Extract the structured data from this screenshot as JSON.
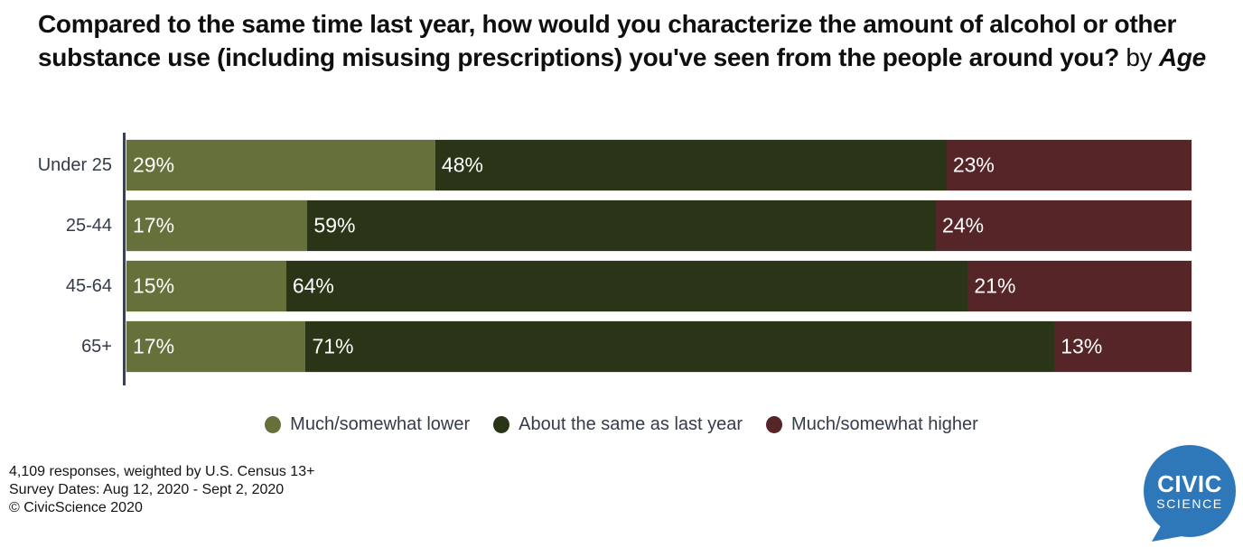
{
  "title": {
    "question": "Compared to the same time last year, how would you characterize the amount of alcohol or other substance use (including misusing prescriptions) you've seen from the people around you?",
    "connector": " by ",
    "breakout": "Age"
  },
  "chart_data": {
    "type": "bar",
    "stacked": true,
    "orientation": "horizontal",
    "categories": [
      "Under 25",
      "25-44",
      "45-64",
      "65+"
    ],
    "series": [
      {
        "name": "Much/somewhat lower",
        "color": "#66703a",
        "values": [
          29,
          17,
          15,
          17
        ]
      },
      {
        "name": "About the same as last year",
        "color": "#2a3517",
        "values": [
          48,
          59,
          64,
          71
        ]
      },
      {
        "name": "Much/somewhat higher",
        "color": "#552528",
        "values": [
          23,
          24,
          21,
          13
        ]
      }
    ],
    "value_suffix": "%",
    "xlim": [
      0,
      100
    ],
    "grid": false,
    "legend_position": "bottom",
    "axis_color": "#3a4150"
  },
  "footer": {
    "lines": [
      "4,109 responses, weighted by U.S. Census 13+",
      "Survey Dates: Aug 12, 2020 - Sept 2, 2020",
      "© CivicScience 2020"
    ]
  },
  "logo": {
    "line1": "CIVIC",
    "line2": "SCIENCE",
    "color": "#2e78ba"
  }
}
